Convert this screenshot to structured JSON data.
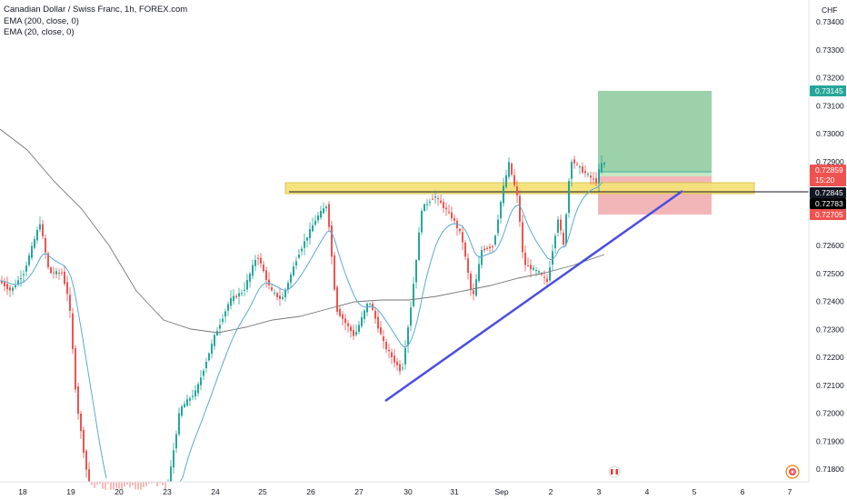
{
  "legend": {
    "title": "Canadian Dollar / Swiss Franc, 1h, FOREX.com",
    "ema200": "EMA (200, close, 0)",
    "ema20": "EMA (20, close, 0)"
  },
  "price_axis": {
    "currency": "CHF",
    "ticks": [
      "0.73400",
      "0.73300",
      "0.73200",
      "0.73100",
      "0.73000",
      "0.72900",
      "0.72600",
      "0.72500",
      "0.72400",
      "0.72300",
      "0.72200",
      "0.72100",
      "0.72000",
      "0.71900",
      "0.71800"
    ],
    "tick_values": [
      0.734,
      0.733,
      0.732,
      0.731,
      0.73,
      0.729,
      0.726,
      0.725,
      0.724,
      0.723,
      0.722,
      0.721,
      0.72,
      0.719,
      0.718
    ]
  },
  "time_axis": {
    "labels": [
      "18",
      "19",
      "20",
      "23",
      "24",
      "25",
      "26",
      "27",
      "30",
      "31",
      "Sep",
      "2",
      "3",
      "4",
      "5",
      "6",
      "7"
    ]
  },
  "price_tags": {
    "take_profit": {
      "value": "0.73145",
      "color": "#26a69a"
    },
    "current": {
      "value": "0.72859",
      "color": "#ef5350",
      "countdown": "15:20"
    },
    "entry": {
      "value": "0.72845",
      "color": "#131722"
    },
    "other": {
      "value": "0.72783",
      "color": "#000000"
    },
    "stop_loss": {
      "value": "0.72705",
      "color": "#ef5350"
    }
  },
  "colors": {
    "up": "#26a69a",
    "down": "#ef5350",
    "ema20": "#5aa9d6",
    "ema200": "#777777",
    "trendline": "#4a4ee0",
    "zone": "#f5e27a",
    "profit": "#8bc99a",
    "loss": "#f1a9ab"
  },
  "icons": {
    "event_canada": "canada-flag-icon",
    "event_other": "event-icon"
  }
}
